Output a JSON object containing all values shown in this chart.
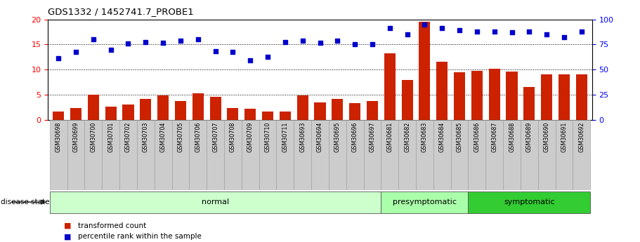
{
  "title": "GDS1332 / 1452741.7_PROBE1",
  "samples": [
    "GSM30698",
    "GSM30699",
    "GSM30700",
    "GSM30701",
    "GSM30702",
    "GSM30703",
    "GSM30704",
    "GSM30705",
    "GSM30706",
    "GSM30707",
    "GSM30708",
    "GSM30709",
    "GSM30710",
    "GSM30711",
    "GSM30693",
    "GSM30694",
    "GSM30695",
    "GSM30696",
    "GSM30697",
    "GSM30681",
    "GSM30682",
    "GSM30683",
    "GSM30684",
    "GSM30685",
    "GSM30686",
    "GSM30687",
    "GSM30688",
    "GSM30689",
    "GSM30690",
    "GSM30691",
    "GSM30692"
  ],
  "bar_values": [
    1.7,
    2.4,
    5.0,
    2.6,
    3.1,
    4.1,
    4.9,
    3.8,
    5.3,
    4.6,
    2.3,
    2.2,
    1.6,
    1.7,
    4.9,
    3.5,
    4.2,
    3.3,
    3.7,
    13.2,
    7.9,
    19.5,
    11.5,
    9.4,
    9.8,
    10.2,
    9.6,
    6.5,
    9.1,
    9.0,
    9.0
  ],
  "scatter_left": [
    12.3,
    13.5,
    16.0,
    14.0,
    15.2,
    15.5,
    15.3,
    15.8,
    16.0,
    13.7,
    13.5,
    11.8,
    12.5,
    15.5,
    15.8,
    15.3,
    15.7,
    15.0,
    15.0,
    18.3,
    17.0,
    19.0,
    18.2,
    17.8,
    17.5,
    17.5,
    17.4,
    17.5,
    17.0,
    16.5,
    17.5
  ],
  "groups": [
    {
      "label": "normal",
      "start": 0,
      "end": 19,
      "color": "#ccffcc"
    },
    {
      "label": "presymptomatic",
      "start": 19,
      "end": 24,
      "color": "#aaffaa"
    },
    {
      "label": "symptomatic",
      "start": 24,
      "end": 31,
      "color": "#33cc33"
    }
  ],
  "bar_color": "#cc2200",
  "scatter_color": "#0000cc",
  "left_ylim": [
    0,
    20
  ],
  "right_ylim": [
    0,
    100
  ],
  "left_yticks": [
    0,
    5,
    10,
    15,
    20
  ],
  "right_yticks": [
    0,
    25,
    50,
    75,
    100
  ],
  "hlines": [
    5,
    10,
    15
  ],
  "disease_state_label": "disease state",
  "legend_bar": "transformed count",
  "legend_scatter": "percentile rank within the sample",
  "tick_box_color": "#cccccc",
  "tick_box_edge": "#999999"
}
